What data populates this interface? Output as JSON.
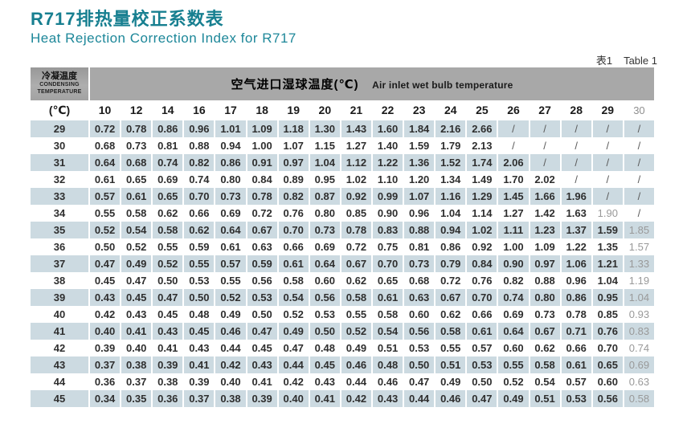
{
  "page": {
    "title_zh": "R717排热量校正系数表",
    "title_en": "Heat Rejection Correction Index for R717",
    "table_ref_zh": "表1",
    "table_ref_en": "Table 1"
  },
  "colors": {
    "accent_teal": "#177f90",
    "header_gray": "#a8a8a8",
    "stripe_blue": "#ccdae1",
    "muted_text": "#999999"
  },
  "table": {
    "corner_header": {
      "zh": "冷凝温度",
      "en_line1": "CONDENSING",
      "en_line2": "TEMPERATURE"
    },
    "unit_label": "(℃)",
    "span_header": {
      "zh": "空气进口湿球温度(℃)",
      "en": "Air inlet wet bulb temperature"
    },
    "columns": [
      "10",
      "12",
      "14",
      "16",
      "17",
      "18",
      "19",
      "20",
      "21",
      "22",
      "23",
      "24",
      "25",
      "26",
      "27",
      "28",
      "29",
      "30"
    ],
    "muted_columns": [
      "30"
    ],
    "extra_muted_cells": [
      {
        "row": "34",
        "col": "29"
      }
    ],
    "rows": [
      {
        "temp": "29",
        "values": [
          "0.72",
          "0.78",
          "0.86",
          "0.96",
          "1.01",
          "1.09",
          "1.18",
          "1.30",
          "1.43",
          "1.60",
          "1.84",
          "2.16",
          "2.66",
          "/",
          "/",
          "/",
          "/",
          "/"
        ]
      },
      {
        "temp": "30",
        "values": [
          "0.68",
          "0.73",
          "0.81",
          "0.88",
          "0.94",
          "1.00",
          "1.07",
          "1.15",
          "1.27",
          "1.40",
          "1.59",
          "1.79",
          "2.13",
          "/",
          "/",
          "/",
          "/",
          "/"
        ]
      },
      {
        "temp": "31",
        "values": [
          "0.64",
          "0.68",
          "0.74",
          "0.82",
          "0.86",
          "0.91",
          "0.97",
          "1.04",
          "1.12",
          "1.22",
          "1.36",
          "1.52",
          "1.74",
          "2.06",
          "/",
          "/",
          "/",
          "/"
        ]
      },
      {
        "temp": "32",
        "values": [
          "0.61",
          "0.65",
          "0.69",
          "0.74",
          "0.80",
          "0.84",
          "0.89",
          "0.95",
          "1.02",
          "1.10",
          "1.20",
          "1.34",
          "1.49",
          "1.70",
          "2.02",
          "/",
          "/",
          "/"
        ]
      },
      {
        "temp": "33",
        "values": [
          "0.57",
          "0.61",
          "0.65",
          "0.70",
          "0.73",
          "0.78",
          "0.82",
          "0.87",
          "0.92",
          "0.99",
          "1.07",
          "1.16",
          "1.29",
          "1.45",
          "1.66",
          "1.96",
          "/",
          "/"
        ]
      },
      {
        "temp": "34",
        "values": [
          "0.55",
          "0.58",
          "0.62",
          "0.66",
          "0.69",
          "0.72",
          "0.76",
          "0.80",
          "0.85",
          "0.90",
          "0.96",
          "1.04",
          "1.14",
          "1.27",
          "1.42",
          "1.63",
          "1.90",
          "/"
        ]
      },
      {
        "temp": "35",
        "values": [
          "0.52",
          "0.54",
          "0.58",
          "0.62",
          "0.64",
          "0.67",
          "0.70",
          "0.73",
          "0.78",
          "0.83",
          "0.88",
          "0.94",
          "1.02",
          "1.11",
          "1.23",
          "1.37",
          "1.59",
          "1.85"
        ]
      },
      {
        "temp": "36",
        "values": [
          "0.50",
          "0.52",
          "0.55",
          "0.59",
          "0.61",
          "0.63",
          "0.66",
          "0.69",
          "0.72",
          "0.75",
          "0.81",
          "0.86",
          "0.92",
          "1.00",
          "1.09",
          "1.22",
          "1.35",
          "1.57"
        ]
      },
      {
        "temp": "37",
        "values": [
          "0.47",
          "0.49",
          "0.52",
          "0.55",
          "0.57",
          "0.59",
          "0.61",
          "0.64",
          "0.67",
          "0.70",
          "0.73",
          "0.79",
          "0.84",
          "0.90",
          "0.97",
          "1.06",
          "1.21",
          "1.33"
        ]
      },
      {
        "temp": "38",
        "values": [
          "0.45",
          "0.47",
          "0.50",
          "0.53",
          "0.55",
          "0.56",
          "0.58",
          "0.60",
          "0.62",
          "0.65",
          "0.68",
          "0.72",
          "0.76",
          "0.82",
          "0.88",
          "0.96",
          "1.04",
          "1.19"
        ]
      },
      {
        "temp": "39",
        "values": [
          "0.43",
          "0.45",
          "0.47",
          "0.50",
          "0.52",
          "0.53",
          "0.54",
          "0.56",
          "0.58",
          "0.61",
          "0.63",
          "0.67",
          "0.70",
          "0.74",
          "0.80",
          "0.86",
          "0.95",
          "1.04"
        ]
      },
      {
        "temp": "40",
        "values": [
          "0.42",
          "0.43",
          "0.45",
          "0.48",
          "0.49",
          "0.50",
          "0.52",
          "0.53",
          "0.55",
          "0.58",
          "0.60",
          "0.62",
          "0.66",
          "0.69",
          "0.73",
          "0.78",
          "0.85",
          "0.93"
        ]
      },
      {
        "temp": "41",
        "values": [
          "0.40",
          "0.41",
          "0.43",
          "0.45",
          "0.46",
          "0.47",
          "0.49",
          "0.50",
          "0.52",
          "0.54",
          "0.56",
          "0.58",
          "0.61",
          "0.64",
          "0.67",
          "0.71",
          "0.76",
          "0.83"
        ]
      },
      {
        "temp": "42",
        "values": [
          "0.39",
          "0.40",
          "0.41",
          "0.43",
          "0.44",
          "0.45",
          "0.47",
          "0.48",
          "0.49",
          "0.51",
          "0.53",
          "0.55",
          "0.57",
          "0.60",
          "0.62",
          "0.66",
          "0.70",
          "0.74"
        ]
      },
      {
        "temp": "43",
        "values": [
          "0.37",
          "0.38",
          "0.39",
          "0.41",
          "0.42",
          "0.43",
          "0.44",
          "0.45",
          "0.46",
          "0.48",
          "0.50",
          "0.51",
          "0.53",
          "0.55",
          "0.58",
          "0.61",
          "0.65",
          "0.69"
        ]
      },
      {
        "temp": "44",
        "values": [
          "0.36",
          "0.37",
          "0.38",
          "0.39",
          "0.40",
          "0.41",
          "0.42",
          "0.43",
          "0.44",
          "0.46",
          "0.47",
          "0.49",
          "0.50",
          "0.52",
          "0.54",
          "0.57",
          "0.60",
          "0.63"
        ]
      },
      {
        "temp": "45",
        "values": [
          "0.34",
          "0.35",
          "0.36",
          "0.37",
          "0.38",
          "0.39",
          "0.40",
          "0.41",
          "0.42",
          "0.43",
          "0.44",
          "0.46",
          "0.47",
          "0.49",
          "0.51",
          "0.53",
          "0.56",
          "0.58"
        ]
      }
    ]
  }
}
